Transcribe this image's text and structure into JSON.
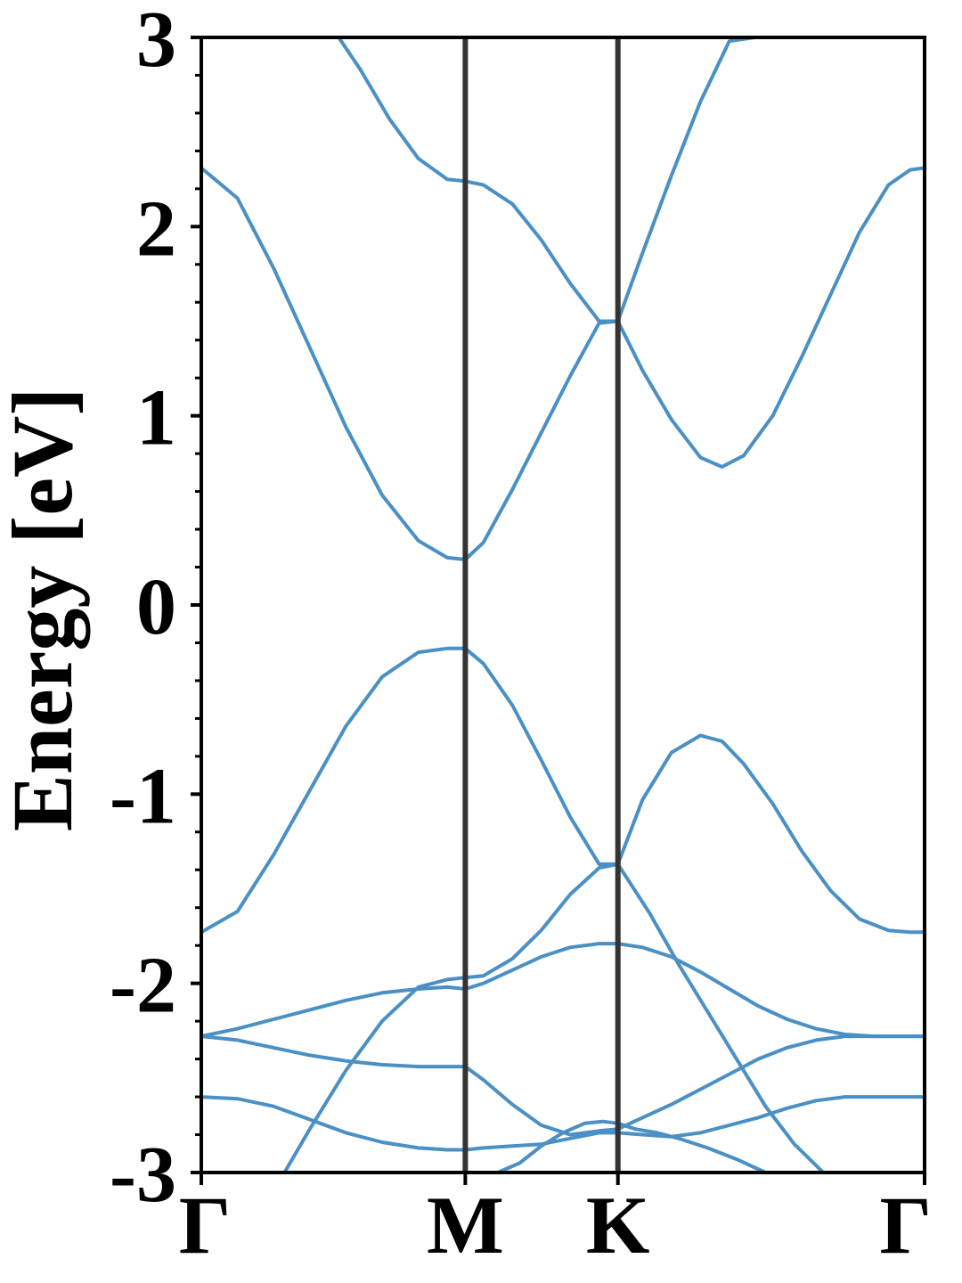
{
  "chart_data": {
    "type": "line",
    "title": "",
    "xlabel": "",
    "ylabel": "Energy [eV]",
    "ylim": [
      -3,
      3
    ],
    "y_ticks": [
      "-3",
      "-2",
      "-1",
      "0",
      "1",
      "2",
      "3"
    ],
    "y_minor_tick_step": 0.2,
    "x_ticks": [
      {
        "label": "Γ",
        "pos": 0.0
      },
      {
        "label": "M",
        "pos": 0.365
      },
      {
        "label": "K",
        "pos": 0.576
      },
      {
        "label": "Γ",
        "pos": 1.0
      }
    ],
    "grid": false,
    "band_color": "#4a90c4",
    "kpoint_line_color": "#333333",
    "series": [
      {
        "x": [
          0,
          0.05,
          0.1,
          0.15,
          0.2,
          0.25,
          0.3,
          0.34,
          0.365,
          0.39,
          0.43,
          0.47,
          0.51,
          0.55,
          0.576,
          0.61,
          0.65,
          0.69,
          0.72,
          0.75,
          0.79,
          0.83,
          0.87,
          0.91,
          0.95,
          0.98,
          1.0
        ],
        "y": [
          2.31,
          2.15,
          1.78,
          1.36,
          0.94,
          0.58,
          0.34,
          0.25,
          0.24,
          0.33,
          0.61,
          0.91,
          1.21,
          1.49,
          1.5,
          1.24,
          0.98,
          0.78,
          0.73,
          0.79,
          1.0,
          1.31,
          1.64,
          1.97,
          2.22,
          2.3,
          2.31
        ]
      },
      {
        "x": [
          0.19,
          0.22,
          0.26,
          0.3,
          0.34,
          0.365,
          0.39,
          0.43,
          0.47,
          0.51,
          0.55,
          0.576,
          0.61,
          0.65,
          0.69,
          0.73,
          0.765
        ],
        "y": [
          3.0,
          2.83,
          2.57,
          2.36,
          2.25,
          2.24,
          2.22,
          2.12,
          1.93,
          1.7,
          1.5,
          1.5,
          1.86,
          2.27,
          2.66,
          2.98,
          3.0
        ]
      },
      {
        "x": [
          0,
          0.05,
          0.1,
          0.15,
          0.2,
          0.25,
          0.3,
          0.34,
          0.365,
          0.39,
          0.43,
          0.47,
          0.51,
          0.55,
          0.576,
          0.61,
          0.65,
          0.69,
          0.72,
          0.75,
          0.79,
          0.83,
          0.87,
          0.91,
          0.95,
          0.98,
          1.0
        ],
        "y": [
          -1.73,
          -1.62,
          -1.32,
          -0.98,
          -0.64,
          -0.38,
          -0.25,
          -0.23,
          -0.23,
          -0.31,
          -0.53,
          -0.82,
          -1.12,
          -1.37,
          -1.37,
          -1.03,
          -0.78,
          -0.69,
          -0.72,
          -0.84,
          -1.05,
          -1.3,
          -1.51,
          -1.66,
          -1.72,
          -1.73,
          -1.73
        ]
      },
      {
        "x": [
          0.115,
          0.15,
          0.2,
          0.25,
          0.3,
          0.34,
          0.365,
          0.39,
          0.43,
          0.47,
          0.51,
          0.55,
          0.576,
          0.62,
          0.66,
          0.7,
          0.74,
          0.78,
          0.82,
          0.86,
          0.9,
          0.9
        ],
        "y": [
          -3.0,
          -2.77,
          -2.46,
          -2.2,
          -2.02,
          -1.98,
          -1.97,
          -1.96,
          -1.87,
          -1.72,
          -1.53,
          -1.39,
          -1.37,
          -1.63,
          -1.9,
          -2.15,
          -2.4,
          -2.65,
          -2.85,
          -3.0,
          -3.0,
          -3.0
        ]
      },
      {
        "x": [
          0,
          0.05,
          0.1,
          0.15,
          0.2,
          0.25,
          0.3,
          0.34,
          0.365,
          0.39,
          0.43,
          0.47,
          0.51,
          0.55,
          0.576,
          0.61,
          0.65,
          0.69,
          0.73,
          0.77,
          0.81,
          0.85,
          0.89,
          0.93,
          0.97,
          1.0
        ],
        "y": [
          -2.28,
          -2.24,
          -2.19,
          -2.14,
          -2.09,
          -2.05,
          -2.03,
          -2.02,
          -2.03,
          -2.0,
          -1.93,
          -1.86,
          -1.81,
          -1.79,
          -1.79,
          -1.81,
          -1.86,
          -1.94,
          -2.03,
          -2.12,
          -2.19,
          -2.24,
          -2.27,
          -2.28,
          -2.28,
          -2.28
        ]
      },
      {
        "x": [
          0,
          0.05,
          0.1,
          0.15,
          0.2,
          0.25,
          0.3,
          0.34,
          0.365,
          0.39,
          0.43,
          0.47,
          0.51,
          0.55,
          0.576,
          0.61,
          0.65,
          0.69,
          0.73,
          0.77,
          0.81,
          0.85,
          0.89,
          0.93,
          0.97,
          1.0
        ],
        "y": [
          -2.28,
          -2.3,
          -2.34,
          -2.38,
          -2.41,
          -2.43,
          -2.44,
          -2.44,
          -2.44,
          -2.51,
          -2.64,
          -2.75,
          -2.8,
          -2.78,
          -2.77,
          -2.71,
          -2.64,
          -2.56,
          -2.48,
          -2.4,
          -2.34,
          -2.3,
          -2.28,
          -2.28,
          -2.28,
          -2.28
        ]
      },
      {
        "x": [
          0,
          0.05,
          0.1,
          0.15,
          0.2,
          0.25,
          0.3,
          0.34,
          0.365,
          0.39,
          0.43,
          0.47,
          0.51,
          0.55,
          0.576,
          0.61,
          0.65,
          0.69,
          0.73,
          0.77,
          0.81,
          0.85,
          0.89,
          0.93,
          0.97,
          1.0
        ],
        "y": [
          -2.6,
          -2.61,
          -2.65,
          -2.72,
          -2.79,
          -2.84,
          -2.87,
          -2.88,
          -2.88,
          -2.87,
          -2.86,
          -2.85,
          -2.82,
          -2.79,
          -2.79,
          -2.8,
          -2.81,
          -2.79,
          -2.75,
          -2.71,
          -2.66,
          -2.62,
          -2.6,
          -2.6,
          -2.6,
          -2.6
        ]
      },
      {
        "x": [
          0.41,
          0.44,
          0.47,
          0.5,
          0.53,
          0.555,
          0.576,
          0.6,
          0.63,
          0.66,
          0.7,
          0.74,
          0.78,
          0.8
        ],
        "y": [
          -3.0,
          -2.95,
          -2.86,
          -2.79,
          -2.74,
          -2.73,
          -2.74,
          -2.77,
          -2.79,
          -2.82,
          -2.87,
          -2.93,
          -3.0,
          -3.0
        ]
      }
    ]
  }
}
